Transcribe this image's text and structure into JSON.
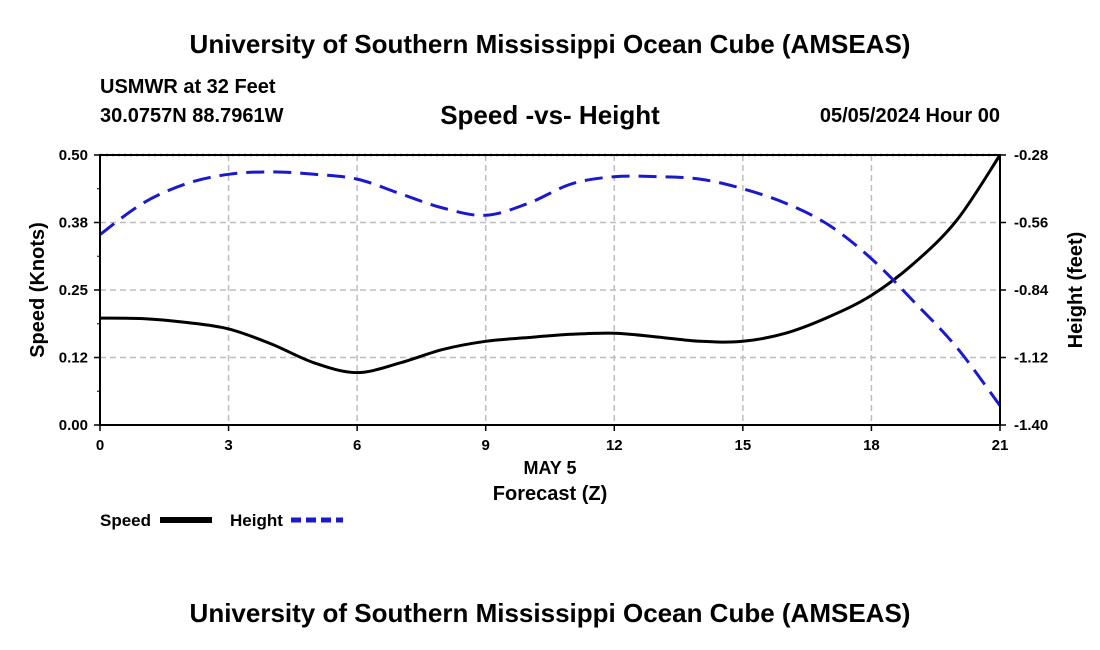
{
  "header": {
    "title": "University of Southern Mississippi Ocean Cube (AMSEAS)",
    "station": "USMWR at 32 Feet",
    "coords": "30.0757N  88.7961W",
    "subtitle": "Speed -vs- Height",
    "datetime": "05/05/2024 Hour 00"
  },
  "footer": {
    "title": "University of Southern Mississippi Ocean Cube (AMSEAS)"
  },
  "chart_data": {
    "type": "line",
    "title": "Speed -vs- Height",
    "xlabel_date": "MAY 5",
    "xlabel": "Forecast (Z)",
    "ylabel_left": "Speed (Knots)",
    "ylabel_right": "Height (feet)",
    "xlim": [
      0,
      21
    ],
    "ylim_left": [
      0,
      0.5
    ],
    "ylim_right": [
      -1.4,
      -0.28
    ],
    "x_ticks": [
      "0",
      "3",
      "6",
      "9",
      "12",
      "15",
      "18",
      "21"
    ],
    "y_left_ticks": [
      "0.00",
      "0.12",
      "0.25",
      "0.38",
      "0.50"
    ],
    "y_right_ticks": [
      "-1.40",
      "-1.12",
      "-0.84",
      "-0.56",
      "-0.28"
    ],
    "grid": true,
    "legend": "bottom-left",
    "series": [
      {
        "name": "Speed",
        "axis": "left",
        "color": "#000000",
        "style": "solid",
        "x": [
          0,
          1,
          2,
          3,
          4,
          5,
          6,
          7,
          8,
          9,
          10,
          11,
          12,
          13,
          14,
          15,
          16,
          17,
          18,
          19,
          20,
          21
        ],
        "values": [
          0.198,
          0.197,
          0.19,
          0.178,
          0.15,
          0.115,
          0.097,
          0.115,
          0.14,
          0.155,
          0.162,
          0.168,
          0.17,
          0.163,
          0.155,
          0.155,
          0.17,
          0.2,
          0.24,
          0.3,
          0.38,
          0.5
        ]
      },
      {
        "name": "Height",
        "axis": "right",
        "color": "#1a1acc",
        "style": "dashed",
        "x": [
          0,
          1,
          2,
          3,
          4,
          5,
          6,
          7,
          8,
          9,
          10,
          11,
          12,
          13,
          14,
          15,
          16,
          17,
          18,
          19,
          20,
          21
        ],
        "values": [
          -0.61,
          -0.48,
          -0.4,
          -0.36,
          -0.35,
          -0.36,
          -0.38,
          -0.44,
          -0.5,
          -0.53,
          -0.48,
          -0.4,
          -0.37,
          -0.37,
          -0.38,
          -0.42,
          -0.48,
          -0.57,
          -0.71,
          -0.89,
          -1.08,
          -1.32
        ]
      }
    ]
  }
}
